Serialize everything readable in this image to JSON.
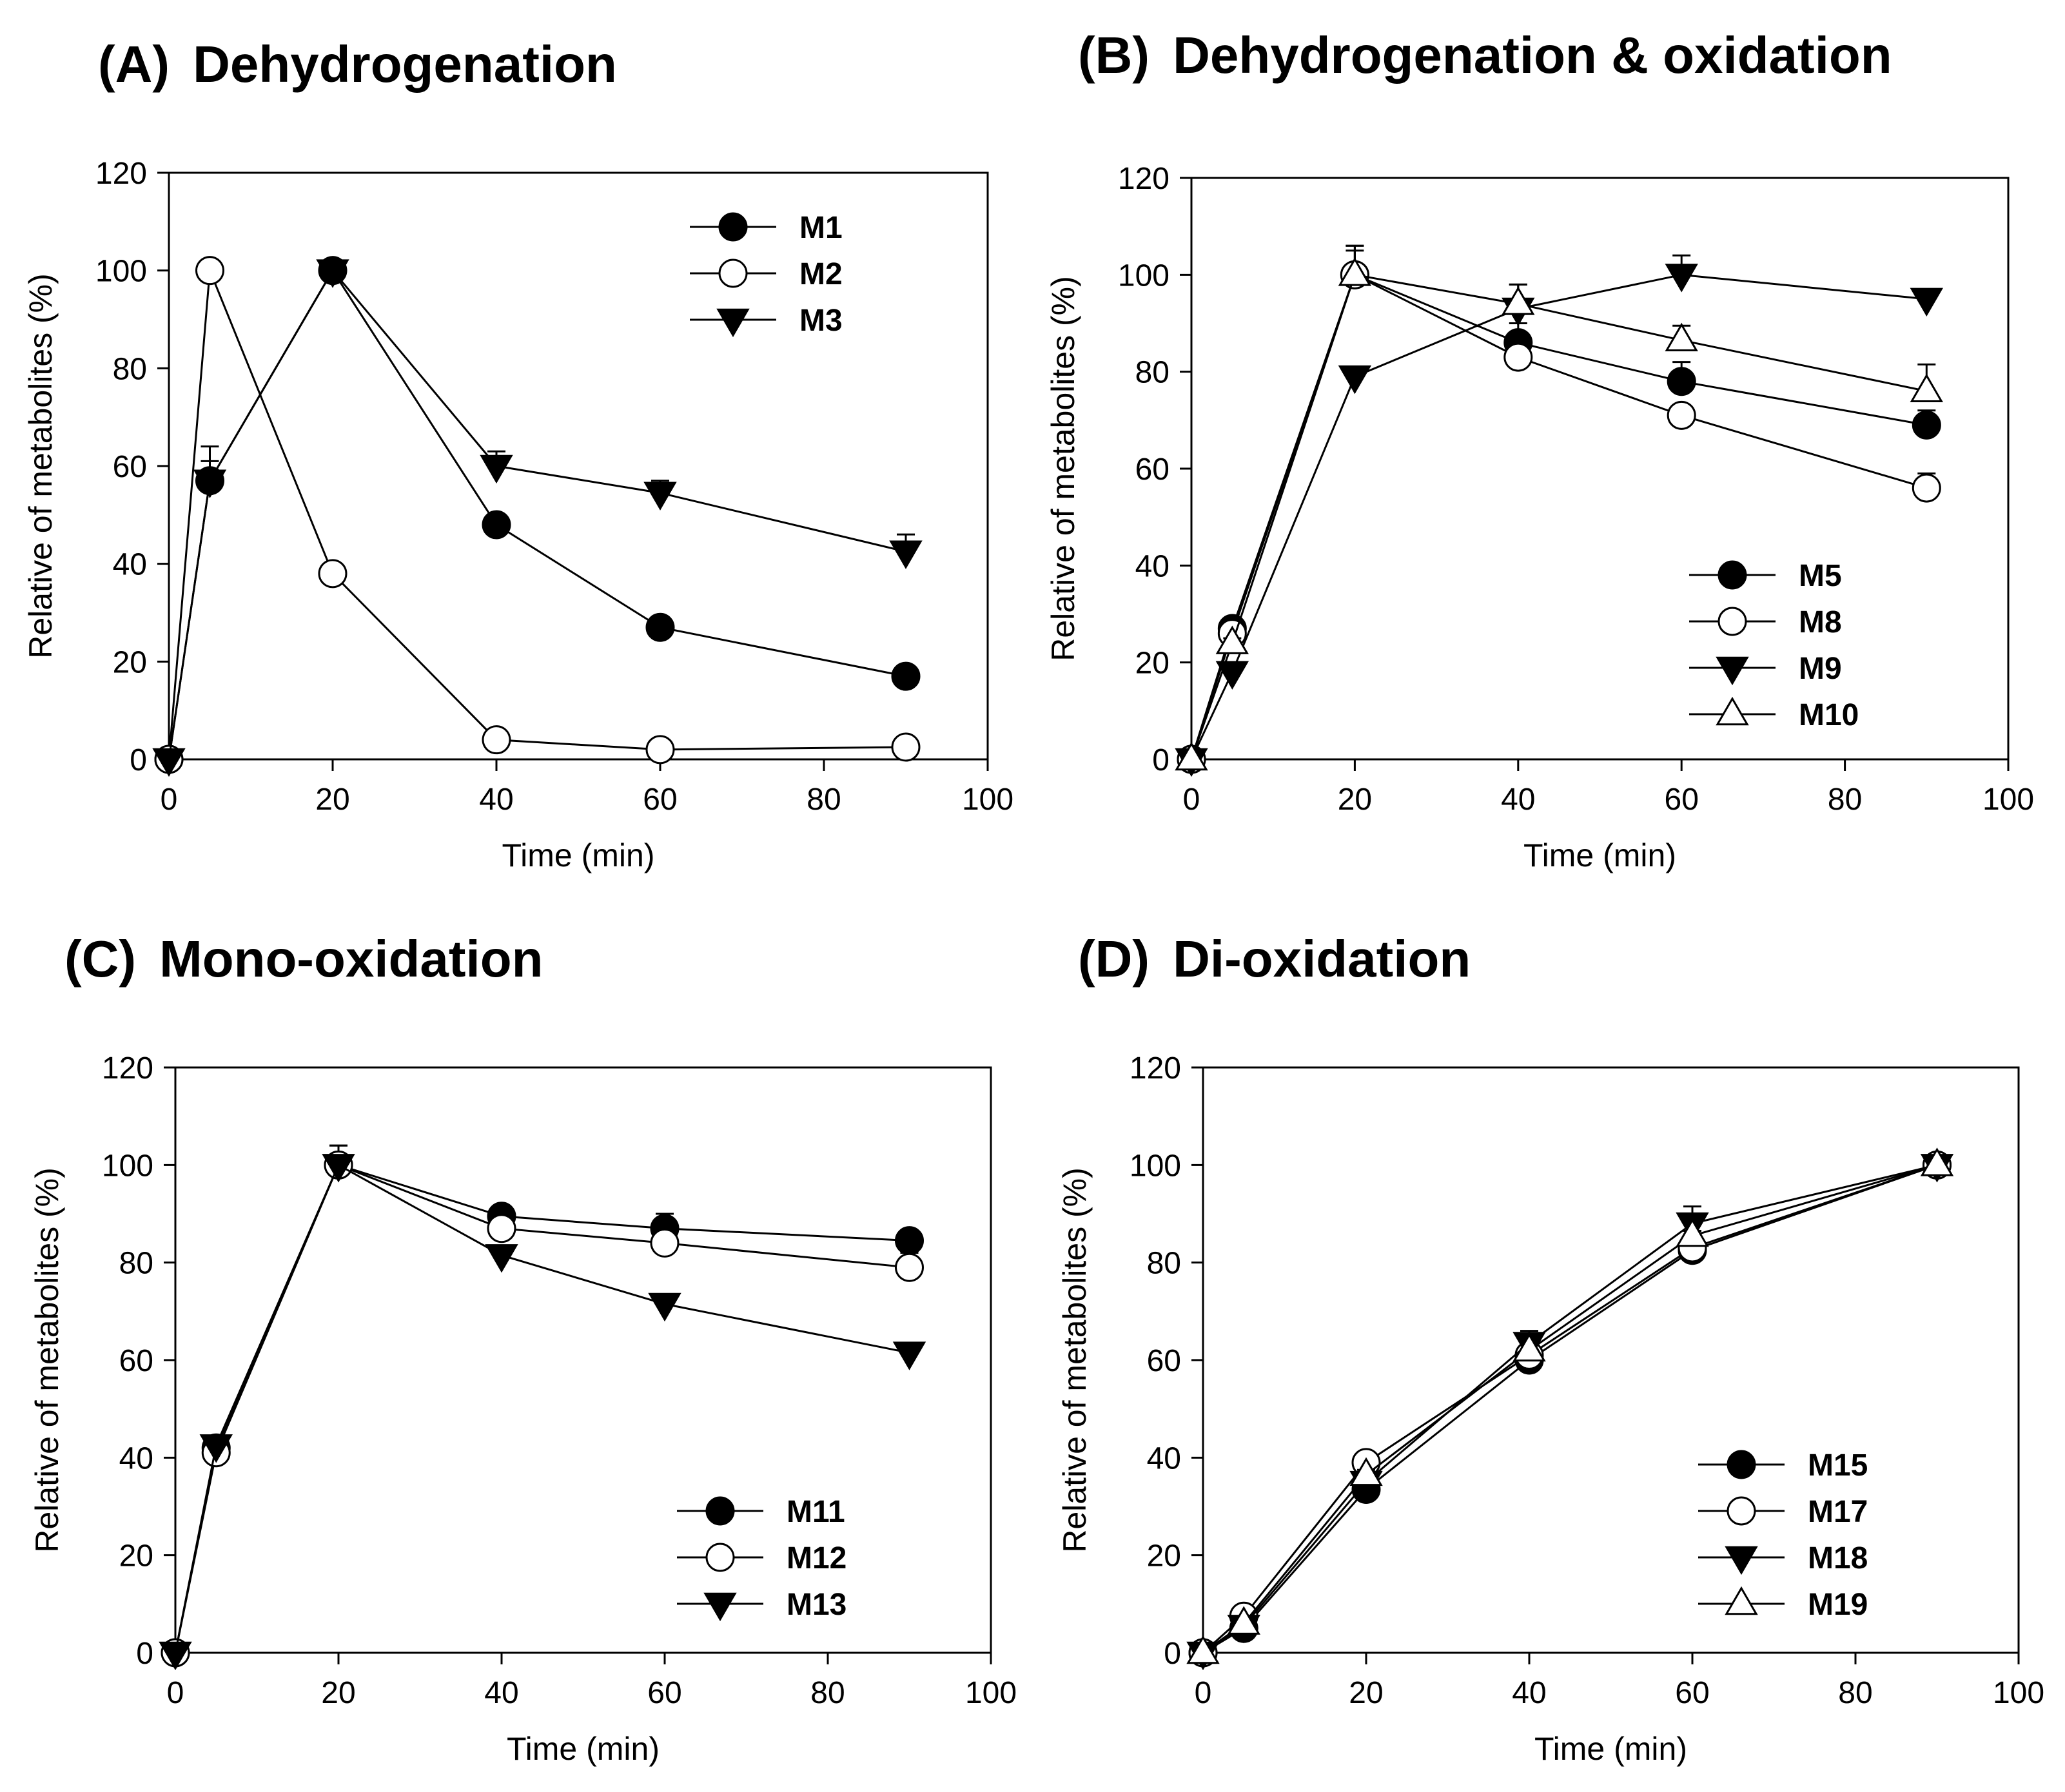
{
  "chart_data": [
    {
      "panel": "A",
      "type": "line",
      "label": "(A)",
      "title": "Dehydrogenation",
      "xlabel": "Time (min)",
      "ylabel": "Relative of metabolites (%)",
      "xlim": [
        0,
        100
      ],
      "ylim": [
        0,
        120
      ],
      "xticks": [
        0,
        20,
        40,
        60,
        80,
        100
      ],
      "yticks": [
        0,
        20,
        40,
        60,
        80,
        100,
        120
      ],
      "legend_position": "top-right",
      "x": [
        0,
        5,
        20,
        40,
        60,
        90
      ],
      "series": [
        {
          "name": "M1",
          "marker": "circle-filled",
          "values": [
            0,
            57,
            100,
            48,
            27,
            17
          ],
          "errors": [
            0,
            7,
            1,
            1,
            1,
            1
          ]
        },
        {
          "name": "M2",
          "marker": "circle-open",
          "values": [
            0,
            100,
            38,
            4,
            2,
            2.5
          ],
          "errors": [
            0,
            0,
            0,
            0,
            0,
            0
          ]
        },
        {
          "name": "M3",
          "marker": "triangle-down-filled",
          "values": [
            0,
            57,
            100,
            60,
            54.5,
            42.5
          ],
          "errors": [
            0,
            4,
            1,
            3,
            2.5,
            3.5
          ]
        }
      ]
    },
    {
      "panel": "B",
      "type": "line",
      "label": "(B)",
      "title": "Dehydrogenation & oxidation",
      "xlabel": "Time (min)",
      "ylabel": "Relative of metabolites (%)",
      "xlim": [
        0,
        100
      ],
      "ylim": [
        0,
        120
      ],
      "xticks": [
        0,
        20,
        40,
        60,
        80,
        100
      ],
      "yticks": [
        0,
        20,
        40,
        60,
        80,
        100,
        120
      ],
      "legend_position": "bottom-right",
      "x": [
        0,
        5,
        20,
        40,
        60,
        90
      ],
      "series": [
        {
          "name": "M5",
          "marker": "circle-filled",
          "values": [
            0,
            27,
            100,
            86,
            78,
            69
          ],
          "errors": [
            0,
            1,
            5,
            4,
            4,
            3
          ]
        },
        {
          "name": "M8",
          "marker": "circle-open",
          "values": [
            0,
            26,
            100,
            83,
            71,
            56
          ],
          "errors": [
            0,
            1,
            6,
            3,
            2,
            3
          ]
        },
        {
          "name": "M9",
          "marker": "triangle-down-filled",
          "values": [
            0,
            18,
            79,
            93,
            100,
            95
          ],
          "errors": [
            0,
            1,
            1,
            5,
            4,
            2
          ]
        },
        {
          "name": "M10",
          "marker": "triangle-up-open",
          "values": [
            0,
            24,
            100,
            94,
            86.5,
            76
          ],
          "errors": [
            0,
            1,
            6,
            4,
            3,
            5.5
          ]
        }
      ]
    },
    {
      "panel": "C",
      "type": "line",
      "label": "(C)",
      "title": "Mono-oxidation",
      "xlabel": "Time (min)",
      "ylabel": "Relative of metabolites (%)",
      "xlim": [
        0,
        100
      ],
      "ylim": [
        0,
        120
      ],
      "xticks": [
        0,
        20,
        40,
        60,
        80,
        100
      ],
      "yticks": [
        0,
        20,
        40,
        60,
        80,
        100,
        120
      ],
      "legend_position": "bottom-right",
      "x": [
        0,
        5,
        20,
        40,
        60,
        90
      ],
      "series": [
        {
          "name": "M11",
          "marker": "circle-filled",
          "values": [
            0,
            42,
            100,
            89.5,
            87,
            84.5
          ],
          "errors": [
            0,
            1,
            4,
            2,
            3,
            1.5
          ]
        },
        {
          "name": "M12",
          "marker": "circle-open",
          "values": [
            0,
            41,
            100,
            87,
            84,
            79
          ],
          "errors": [
            0,
            1,
            4,
            3,
            3,
            3
          ]
        },
        {
          "name": "M13",
          "marker": "triangle-down-filled",
          "values": [
            0,
            42.5,
            100,
            81.5,
            71.5,
            61.5
          ],
          "errors": [
            0,
            1,
            2,
            1.5,
            1.5,
            1
          ]
        }
      ]
    },
    {
      "panel": "D",
      "type": "line",
      "label": "(D)",
      "title": "Di-oxidation",
      "xlabel": "Time (min)",
      "ylabel": "Relative of metabolites (%)",
      "xlim": [
        0,
        100
      ],
      "ylim": [
        0,
        120
      ],
      "xticks": [
        0,
        20,
        40,
        60,
        80,
        100
      ],
      "yticks": [
        0,
        20,
        40,
        60,
        80,
        100,
        120
      ],
      "legend_position": "bottom-right",
      "x": [
        0,
        5,
        20,
        40,
        60,
        90
      ],
      "series": [
        {
          "name": "M15",
          "marker": "circle-filled",
          "values": [
            0,
            5,
            33.5,
            60,
            82.5,
            100
          ],
          "errors": [
            0,
            1,
            1,
            1,
            3,
            1
          ]
        },
        {
          "name": "M17",
          "marker": "circle-open",
          "values": [
            0,
            7.5,
            39,
            61,
            83,
            100
          ],
          "errors": [
            0,
            1,
            1,
            1,
            2,
            1
          ]
        },
        {
          "name": "M18",
          "marker": "triangle-down-filled",
          "values": [
            0,
            5.5,
            35,
            63.5,
            88,
            100
          ],
          "errors": [
            0,
            1,
            1,
            2.5,
            3.5,
            1
          ]
        },
        {
          "name": "M19",
          "marker": "triangle-up-open",
          "values": [
            0,
            6,
            36.5,
            62,
            85.5,
            100
          ],
          "errors": [
            0,
            1,
            1,
            1,
            1,
            1
          ]
        }
      ]
    }
  ]
}
